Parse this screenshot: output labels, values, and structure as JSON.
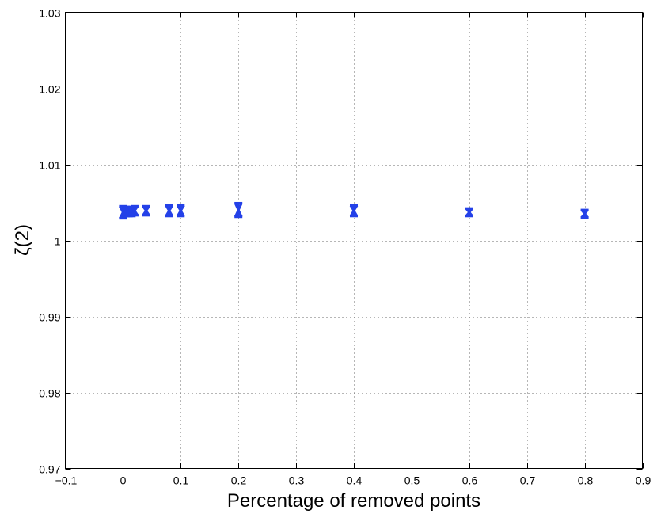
{
  "chart_data": {
    "type": "scatter",
    "title": "",
    "xlabel": "Percentage of removed points",
    "ylabel": "ζ(2)",
    "xlim": [
      -0.1,
      0.9
    ],
    "ylim": [
      0.97,
      1.03
    ],
    "xticks": [
      -0.1,
      0,
      0.1,
      0.2,
      0.3,
      0.4,
      0.5,
      0.6,
      0.7,
      0.8,
      0.9
    ],
    "xtick_labels": [
      "−0.1",
      "0",
      "0.1",
      "0.2",
      "0.3",
      "0.4",
      "0.5",
      "0.6",
      "0.7",
      "0.8",
      "0.9"
    ],
    "yticks": [
      0.97,
      0.98,
      0.99,
      1,
      1.01,
      1.02,
      1.03
    ],
    "ytick_labels": [
      "0.97",
      "0.98",
      "0.99",
      "1",
      "1.01",
      "1.02",
      "1.03"
    ],
    "grid": true,
    "color": "#2441e8",
    "series": [
      {
        "x": [
          0,
          0.005,
          0.01,
          0.015,
          0.02,
          0.04,
          0.08,
          0.1,
          0.2,
          0.4,
          0.6,
          0.8
        ],
        "y": [
          1.0037,
          1.0038,
          1.0038,
          1.0038,
          1.0039,
          1.0039,
          1.0039,
          1.0039,
          1.004,
          1.0039,
          1.0037,
          1.0035
        ],
        "err_low": [
          1.0029,
          1.0032,
          1.0032,
          1.0032,
          1.0033,
          1.0033,
          1.0032,
          1.0032,
          1.0031,
          1.0032,
          1.0032,
          1.003
        ],
        "err_high": [
          1.0045,
          1.0044,
          1.0044,
          1.0044,
          1.0045,
          1.0045,
          1.0046,
          1.0046,
          1.0049,
          1.0046,
          1.0042,
          1.004
        ]
      }
    ]
  }
}
